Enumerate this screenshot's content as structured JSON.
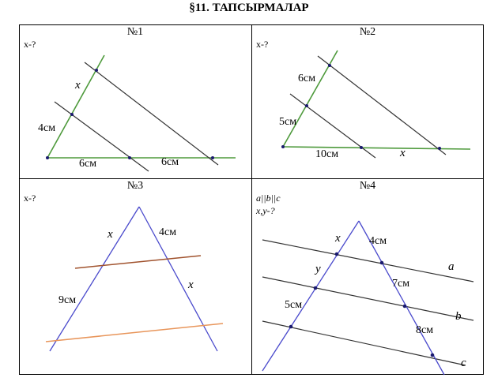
{
  "title": "§11. ТАПСЫРМАЛАР",
  "problems": [
    {
      "number": "№1",
      "task": "x-?",
      "labels": {
        "x": "x",
        "seg_a": "4см",
        "seg_b": "6см",
        "seg_c": "6см"
      }
    },
    {
      "number": "№2",
      "task": "x-?",
      "labels": {
        "seg_a": "6см",
        "seg_b": "5см",
        "seg_c": "10см",
        "x": "x"
      }
    },
    {
      "number": "№3",
      "task": "x-?",
      "labels": {
        "x_left": "x",
        "seg_top": "4см",
        "x_right": "x",
        "seg_left": "9см"
      }
    },
    {
      "number": "№4",
      "condition": "a||b||c",
      "task": "x,y-?",
      "labels": {
        "x": "x",
        "y": "y",
        "seg_4": "4см",
        "seg_7": "7см",
        "seg_5": "5см",
        "seg_8": "8см",
        "line_a": "a",
        "line_b": "b",
        "line_c": "c"
      }
    }
  ],
  "colors": {
    "green": "#4e9a3c",
    "dark": "#333333",
    "blue": "#4a4acc",
    "brown": "#a0522d",
    "orange": "#e8955a",
    "point": "#1a1a6e"
  }
}
